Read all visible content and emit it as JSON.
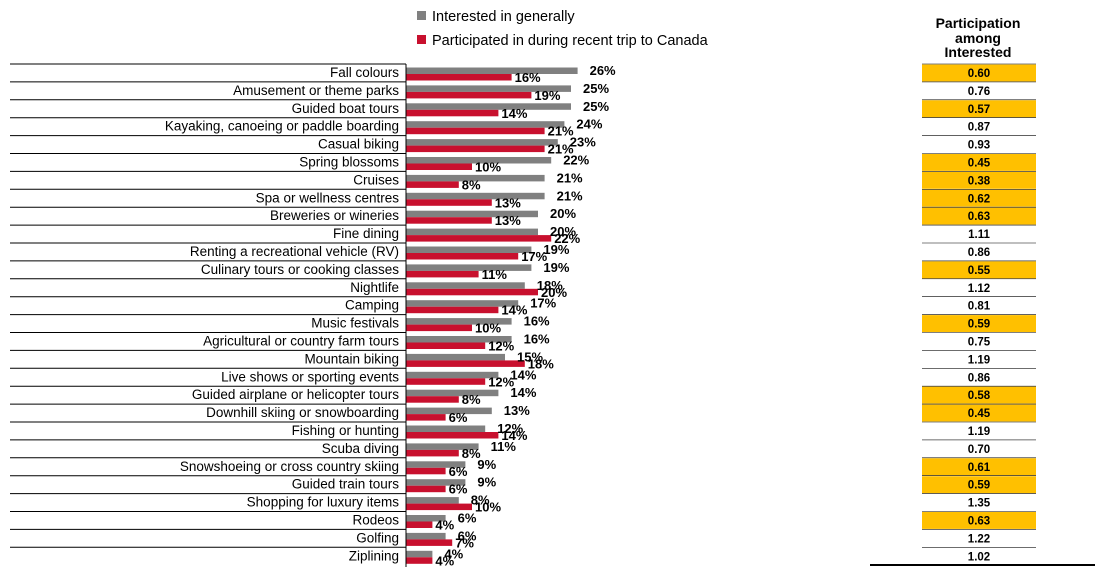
{
  "chart_data": {
    "type": "bar",
    "orientation": "horizontal",
    "categories": [
      "Fall colours",
      "Amusement or theme parks",
      "Guided boat tours",
      "Kayaking, canoeing or paddle boarding",
      "Casual biking",
      "Spring blossoms",
      "Cruises",
      "Spa or wellness centres",
      "Breweries or wineries",
      "Fine dining",
      "Renting a recreational vehicle (RV)",
      "Culinary tours or cooking classes",
      "Nightlife",
      "Camping",
      "Music festivals",
      "Agricultural or country farm tours",
      "Mountain biking",
      "Live shows or sporting events",
      "Guided airplane or helicopter tours",
      "Downhill skiing or snowboarding",
      "Fishing or hunting",
      "Scuba diving",
      "Snowshoeing or cross country skiing",
      "Guided train tours",
      "Shopping for luxury items",
      "Rodeos",
      "Golfing",
      "Ziplining"
    ],
    "series": [
      {
        "name": "Interested in generally",
        "color": "#808080",
        "values": [
          26,
          25,
          25,
          24,
          23,
          22,
          21,
          21,
          20,
          20,
          19,
          19,
          18,
          17,
          16,
          16,
          15,
          14,
          14,
          13,
          12,
          11,
          9,
          9,
          8,
          6,
          6,
          4
        ],
        "labels": [
          "26%",
          "25%",
          "25%",
          "24%",
          "23%",
          "22%",
          "21%",
          "21%",
          "20%",
          "20%",
          "19%",
          "19%",
          "18%",
          "17%",
          "16%",
          "16%",
          "15%",
          "14%",
          "14%",
          "13%",
          "12%",
          "11%",
          "9%",
          "9%",
          "8%",
          "6%",
          "6%",
          "4%"
        ]
      },
      {
        "name": "Participated in during recent trip to Canada",
        "color": "#C8102E",
        "values": [
          16,
          19,
          14,
          21,
          21,
          10,
          8,
          13,
          13,
          22,
          17,
          11,
          20,
          14,
          10,
          12,
          18,
          12,
          8,
          6,
          14,
          8,
          6,
          6,
          10,
          4,
          7,
          4
        ],
        "labels": [
          "16%",
          "19%",
          "14%",
          "21%",
          "21%",
          "10%",
          "8%",
          "13%",
          "13%",
          "22%",
          "17%",
          "11%",
          "20%",
          "14%",
          "10%",
          "12%",
          "18%",
          "12%",
          "8%",
          "6%",
          "14%",
          "8%",
          "6%",
          "6%",
          "10%",
          "4%",
          "7%",
          "4%"
        ]
      }
    ],
    "xlim": [
      0,
      30
    ],
    "legend_position": "top",
    "grid": false,
    "side_table": {
      "header_lines": [
        "Participation",
        "among",
        "Interested"
      ],
      "values": [
        "0.60",
        "0.76",
        "0.57",
        "0.87",
        "0.93",
        "0.45",
        "0.38",
        "0.62",
        "0.63",
        "1.11",
        "0.86",
        "0.55",
        "1.12",
        "0.81",
        "0.59",
        "0.75",
        "1.19",
        "0.86",
        "0.58",
        "0.45",
        "1.19",
        "0.70",
        "0.61",
        "0.59",
        "1.35",
        "0.63",
        "1.22",
        "1.02"
      ],
      "highlight": [
        true,
        false,
        true,
        false,
        false,
        true,
        true,
        true,
        true,
        false,
        false,
        true,
        false,
        false,
        true,
        false,
        false,
        false,
        true,
        true,
        false,
        false,
        true,
        true,
        false,
        true,
        false,
        false
      ],
      "highlight_color": "#FFC000"
    }
  }
}
